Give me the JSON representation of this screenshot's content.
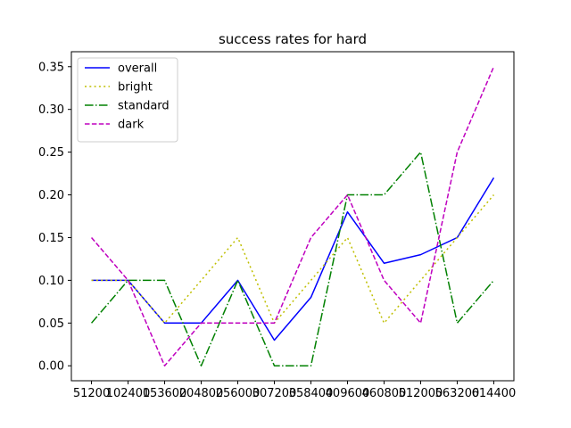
{
  "chart_data": {
    "type": "line",
    "title": "success rates for hard",
    "xlabel": "",
    "ylabel": "",
    "x": [
      "51200",
      "102400",
      "153600",
      "204800",
      "256000",
      "307200",
      "358400",
      "409600",
      "460800",
      "512000",
      "563200",
      "614400"
    ],
    "yticks": [
      "0.00",
      "0.05",
      "0.10",
      "0.15",
      "0.20",
      "0.25",
      "0.30",
      "0.35"
    ],
    "ylim": [
      -0.0175,
      0.3675
    ],
    "grid": false,
    "legend_position": "top-left",
    "series": [
      {
        "name": "overall",
        "color": "#0000ff",
        "style": "solid",
        "values": [
          0.1,
          0.1,
          0.05,
          0.05,
          0.1,
          0.03,
          0.08,
          0.18,
          0.12,
          0.13,
          0.15,
          0.22
        ]
      },
      {
        "name": "bright",
        "color": "#bfbf00",
        "style": "dotted",
        "values": [
          0.1,
          0.1,
          0.05,
          0.1,
          0.15,
          0.05,
          0.1,
          0.15,
          0.05,
          0.1,
          0.15,
          0.2
        ]
      },
      {
        "name": "standard",
        "color": "#008000",
        "style": "dashdot",
        "values": [
          0.05,
          0.1,
          0.1,
          0.0,
          0.1,
          0.0,
          0.0,
          0.2,
          0.2,
          0.25,
          0.05,
          0.1
        ]
      },
      {
        "name": "dark",
        "color": "#bf00bf",
        "style": "dashed",
        "values": [
          0.15,
          0.1,
          0.0,
          0.05,
          0.05,
          0.05,
          0.15,
          0.2,
          0.1,
          0.05,
          0.25,
          0.35
        ]
      }
    ]
  }
}
